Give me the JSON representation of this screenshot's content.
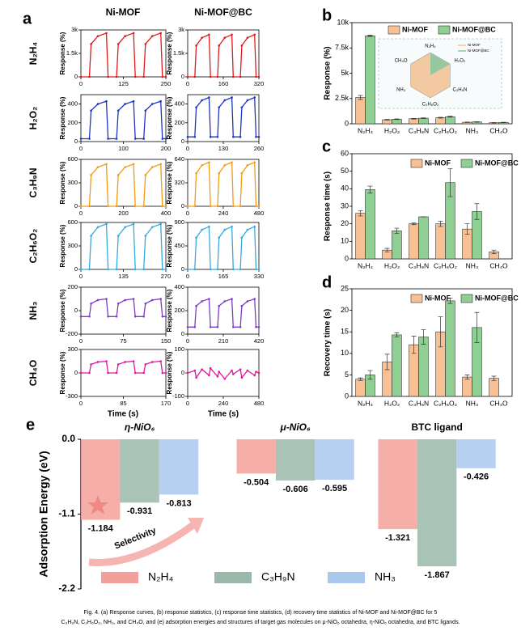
{
  "figure": {
    "panel_labels": [
      "a",
      "b",
      "c",
      "d",
      "e"
    ],
    "column_titles": [
      "Ni-MOF",
      "Ni-MOF@BC"
    ],
    "gas_labels": [
      "N₂H₄",
      "H₂O₂",
      "C₃H₉N",
      "C₂H₆O₂",
      "NH₃",
      "CH₄O"
    ],
    "xlabel": "Time (s)",
    "caption": [
      "Fig. 4. (a) Response curves, (b) response statistics, (c) response time statistics, (d) recovery time statistics of Ni-MOF and Ni-MOF@BC for 5",
      "C₃H₉N, C₂H₆O₂, NH₃, and CH₄O, and (e) adsorption energies and structures of target gas molecules on μ-NiO₆ octahedra, η-NiO₆ octahedra, and BTC ligands."
    ]
  },
  "chart_data": [
    {
      "type": "line",
      "ylabel": "Response (%)",
      "color": "#e31a1c",
      "x": [
        0,
        25,
        30,
        50,
        75,
        80,
        105,
        110,
        130,
        155,
        160,
        185,
        190,
        210,
        235,
        240,
        250
      ],
      "values": [
        0,
        0,
        2100,
        2600,
        2800,
        0,
        0,
        2100,
        2600,
        2800,
        0,
        0,
        2100,
        2600,
        2800,
        0,
        0
      ],
      "xlim": [
        0,
        250
      ],
      "xticks": [
        0,
        125,
        250
      ],
      "ylim": [
        0,
        3000
      ],
      "yticks": [
        0,
        {
          "value": 1500,
          "label": "1.5k"
        },
        {
          "value": 3000,
          "label": "3k"
        }
      ]
    },
    {
      "type": "line",
      "ylabel": "Response (%)",
      "color": "#e31a1c",
      "x": [
        0,
        32,
        38.4,
        64,
        96,
        102.4,
        134.4,
        140.8,
        166.4,
        198.4,
        204.8,
        236.8,
        243.2,
        268.8,
        300.8,
        307.2,
        320
      ],
      "values": [
        0,
        0,
        2000,
        2500,
        2700,
        0,
        0,
        2000,
        2500,
        2700,
        0,
        0,
        2000,
        2500,
        2700,
        0,
        0
      ],
      "xlim": [
        0,
        320
      ],
      "xticks": [
        0,
        160,
        320
      ],
      "ylim": [
        0,
        3000
      ],
      "yticks": [
        0,
        {
          "value": 1500,
          "label": "1.5k"
        },
        {
          "value": 3000,
          "label": "3k"
        }
      ]
    },
    {
      "type": "line",
      "ylabel": "Response (%)",
      "color": "#1f35c4",
      "x": [
        0,
        20,
        24,
        40,
        60,
        64,
        84,
        88,
        104,
        124,
        128,
        148,
        152,
        168,
        188,
        192,
        200
      ],
      "values": [
        30,
        30,
        330,
        400,
        430,
        30,
        30,
        330,
        400,
        430,
        30,
        30,
        330,
        400,
        430,
        30,
        30
      ],
      "xlim": [
        0,
        200
      ],
      "xticks": [
        0,
        100,
        200
      ],
      "ylim": [
        0,
        500
      ],
      "yticks": [
        0,
        200,
        400
      ]
    },
    {
      "type": "line",
      "ylabel": "Response (%)",
      "color": "#1f35c4",
      "x": [
        0,
        26,
        31.2,
        52,
        78,
        83.2,
        109.2,
        114.4,
        135.2,
        161.2,
        166.4,
        192.4,
        197.6,
        218.4,
        244.4,
        249.6,
        260
      ],
      "values": [
        50,
        50,
        365,
        440,
        470,
        50,
        50,
        365,
        440,
        470,
        50,
        50,
        365,
        440,
        470,
        50,
        50
      ],
      "xlim": [
        0,
        260
      ],
      "xticks": [
        0,
        130,
        260
      ],
      "ylim": [
        0,
        500
      ],
      "yticks": [
        0,
        200,
        400
      ]
    },
    {
      "type": "line",
      "ylabel": "Response (%)",
      "color": "#f39c12",
      "x": [
        0,
        40,
        48,
        80,
        120,
        128,
        168,
        176,
        208,
        248,
        256,
        296,
        304,
        336,
        376,
        384,
        400
      ],
      "values": [
        0,
        0,
        400,
        500,
        540,
        0,
        0,
        400,
        500,
        540,
        0,
        0,
        400,
        500,
        540,
        0,
        0
      ],
      "xlim": [
        0,
        400
      ],
      "xticks": [
        0,
        200,
        400
      ],
      "ylim": [
        0,
        600
      ],
      "yticks": [
        0,
        300,
        600
      ]
    },
    {
      "type": "line",
      "ylabel": "Response (%)",
      "color": "#f39c12",
      "x": [
        0,
        48,
        57.6,
        96,
        144,
        153.6,
        201.6,
        211.2,
        249.6,
        297.6,
        307.2,
        355.2,
        364.8,
        403.2,
        451.2,
        460.8,
        480
      ],
      "values": [
        0,
        0,
        450,
        560,
        600,
        0,
        0,
        450,
        560,
        600,
        0,
        0,
        450,
        560,
        600,
        0,
        0
      ],
      "xlim": [
        0,
        480
      ],
      "xticks": [
        0,
        240,
        480
      ],
      "ylim": [
        0,
        640
      ],
      "yticks": [
        0,
        320,
        640
      ]
    },
    {
      "type": "line",
      "ylabel": "Response (%)",
      "color": "#36a9e1",
      "x": [
        0,
        27,
        32.4,
        54,
        81,
        86.4,
        113.4,
        118.8,
        140.4,
        167.4,
        172.8,
        199.8,
        205.2,
        226.8,
        253.8,
        259.2,
        270
      ],
      "values": [
        0,
        0,
        430,
        540,
        580,
        0,
        0,
        430,
        540,
        580,
        0,
        0,
        430,
        540,
        580,
        0,
        0
      ],
      "xlim": [
        0,
        270
      ],
      "xticks": [
        0,
        135,
        270
      ],
      "ylim": [
        0,
        600
      ],
      "yticks": [
        0,
        300,
        600
      ]
    },
    {
      "type": "line",
      "ylabel": "Response (%)",
      "color": "#36a9e1",
      "x": [
        0,
        33,
        39.6,
        66,
        99,
        105.6,
        138.6,
        145.2,
        171.6,
        204.6,
        211.2,
        244.2,
        250.8,
        277.2,
        310.2,
        316.8,
        330
      ],
      "values": [
        0,
        0,
        610,
        760,
        820,
        0,
        0,
        610,
        760,
        820,
        0,
        0,
        610,
        760,
        820,
        0,
        0
      ],
      "xlim": [
        0,
        330
      ],
      "xticks": [
        0,
        165,
        330
      ],
      "ylim": [
        0,
        900
      ],
      "yticks": [
        0,
        450,
        900
      ]
    },
    {
      "type": "line",
      "ylabel": "Response (%)",
      "color": "#7d3cc8",
      "x": [
        0,
        15,
        18,
        30,
        45,
        48,
        63,
        66,
        78,
        93,
        96,
        111,
        114,
        126,
        141,
        144,
        150
      ],
      "values": [
        -50,
        -50,
        60,
        90,
        100,
        -50,
        -50,
        60,
        90,
        100,
        -50,
        -50,
        60,
        90,
        100,
        -50,
        -50
      ],
      "xlim": [
        0,
        150
      ],
      "xticks": [
        0,
        75,
        150
      ],
      "ylim": [
        -200,
        200
      ],
      "yticks": [
        -200,
        0,
        200
      ]
    },
    {
      "type": "line",
      "ylabel": "Response (%)",
      "color": "#7d3cc8",
      "x": [
        0,
        42,
        50.4,
        84,
        126,
        134.4,
        176.4,
        184.8,
        218.4,
        260.4,
        268.8,
        310.8,
        319.2,
        352.8,
        394.8,
        403.2,
        420
      ],
      "values": [
        60,
        60,
        240,
        280,
        300,
        60,
        60,
        240,
        280,
        300,
        60,
        60,
        240,
        280,
        300,
        60,
        60
      ],
      "xlim": [
        0,
        420
      ],
      "xticks": [
        0,
        210,
        420
      ],
      "ylim": [
        0,
        400
      ],
      "yticks": [
        0,
        200,
        400
      ]
    },
    {
      "type": "line",
      "ylabel": "Response (%)",
      "color": "#e0199e",
      "x": [
        0,
        17,
        20.4,
        34,
        51,
        54.4,
        71.4,
        74.8,
        88.4,
        105.4,
        108.8,
        125.8,
        129.2,
        142.8,
        159.8,
        163.2,
        170
      ],
      "values": [
        0,
        0,
        110,
        140,
        150,
        0,
        0,
        110,
        140,
        150,
        0,
        0,
        110,
        140,
        150,
        0,
        0
      ],
      "xlim": [
        0,
        170
      ],
      "xticks": [
        0,
        85,
        170
      ],
      "ylim": [
        -300,
        300
      ],
      "yticks": [
        -300,
        0,
        300
      ]
    },
    {
      "type": "line",
      "ylabel": "Response (%)",
      "color": "#e0199e",
      "x": [
        0,
        48,
        57.6,
        96,
        144,
        153.6,
        201.6,
        211.2,
        249.6,
        297.6,
        307.2,
        355.2,
        364.8,
        403.2,
        451.2,
        460.8,
        480
      ],
      "values": [
        0,
        10,
        -20,
        15,
        -10,
        20,
        -15,
        5,
        -25,
        10,
        -5,
        15,
        -20,
        10,
        -10,
        5,
        0
      ],
      "xlim": [
        0,
        480
      ],
      "xticks": [
        0,
        240,
        480
      ],
      "ylim": [
        -100,
        100
      ],
      "yticks": [
        -100,
        0,
        100
      ]
    },
    {
      "type": "bar",
      "ylabel": "Response (%)",
      "categories": [
        "N₂H₄",
        "H₂O₂",
        "C₃H₉N",
        "C₂H₆O₂",
        "NH₃",
        "CH₄O"
      ],
      "series": [
        {
          "name": "Ni-MOF",
          "color": "#f8c195",
          "values": [
            2600,
            400,
            500,
            600,
            150,
            100
          ],
          "errors": [
            200,
            30,
            30,
            40,
            20,
            20
          ]
        },
        {
          "name": "Ni-MOF@BC",
          "color": "#8fcf93",
          "values": [
            8700,
            450,
            550,
            700,
            180,
            130
          ],
          "errors": [
            60,
            30,
            30,
            40,
            20,
            20
          ]
        }
      ],
      "ylim": [
        0,
        10000
      ],
      "yticks": [
        0,
        {
          "value": 2500,
          "label": "2.5k"
        },
        {
          "value": 5000,
          "label": "5k"
        },
        {
          "value": 7500,
          "label": "7.5k"
        },
        {
          "value": 10000,
          "label": "10k"
        }
      ]
    },
    {
      "type": "bar",
      "ylabel": "Response time (s)",
      "categories": [
        "N₂H₄",
        "H₂O₂",
        "C₃H₉N",
        "C₂H₆O₂",
        "NH₃",
        "CH₄O"
      ],
      "series": [
        {
          "name": "Ni-MOF",
          "color": "#f8c195",
          "values": [
            26,
            5,
            20,
            20,
            17,
            4
          ],
          "errors": [
            1.5,
            1,
            0.5,
            1.5,
            3,
            1
          ]
        },
        {
          "name": "Ni-MOF@BC",
          "color": "#8fcf93",
          "values": [
            39.5,
            16,
            24,
            43.5,
            27,
            null
          ],
          "errors": [
            2,
            1.5,
            0,
            8,
            4.5,
            null
          ]
        }
      ],
      "ylim": [
        0,
        60
      ],
      "yticks": [
        0,
        10,
        20,
        30,
        40,
        50,
        60
      ]
    },
    {
      "type": "bar",
      "ylabel": "Recovery time (s)",
      "categories": [
        "N₂H₄",
        "H₂O₂",
        "C₃H₉N",
        "C₂H₆O₂",
        "NH₃",
        "CH₄O"
      ],
      "series": [
        {
          "name": "Ni-MOF",
          "color": "#f8c195",
          "values": [
            4,
            8,
            12,
            15,
            4.5,
            4.2
          ],
          "errors": [
            0.3,
            1.8,
            2,
            3.5,
            0.5,
            0.5
          ]
        },
        {
          "name": "Ni-MOF@BC",
          "color": "#8fcf93",
          "values": [
            5,
            14.3,
            13.8,
            22.2,
            16,
            null
          ],
          "errors": [
            1,
            0.5,
            1.7,
            0.6,
            3.5,
            null
          ]
        }
      ],
      "ylim": [
        0,
        25
      ],
      "yticks": [
        0,
        5,
        10,
        15,
        20,
        25
      ]
    },
    {
      "type": "energy",
      "ylabel": "Adsorption Energy (eV)",
      "categories": [
        "η-NiO₆",
        "μ-NiO₆",
        "BTC ligand"
      ],
      "series": [
        {
          "name": "N₂H₄",
          "color": "#f4a09a",
          "values": [
            -1.184,
            -0.504,
            -1.321
          ]
        },
        {
          "name": "C₃H₉N",
          "color": "#9ab8aa",
          "values": [
            -0.931,
            -0.606,
            -1.867
          ]
        },
        {
          "name": "NH₃",
          "color": "#aac8ee",
          "values": [
            -0.813,
            -0.595,
            -0.426
          ]
        }
      ],
      "ylim": [
        -2.2,
        0
      ],
      "yticks": [
        {
          "value": 0,
          "label": "0.0"
        },
        -1.1,
        -2.2
      ],
      "annotation": "Selectivity"
    }
  ]
}
